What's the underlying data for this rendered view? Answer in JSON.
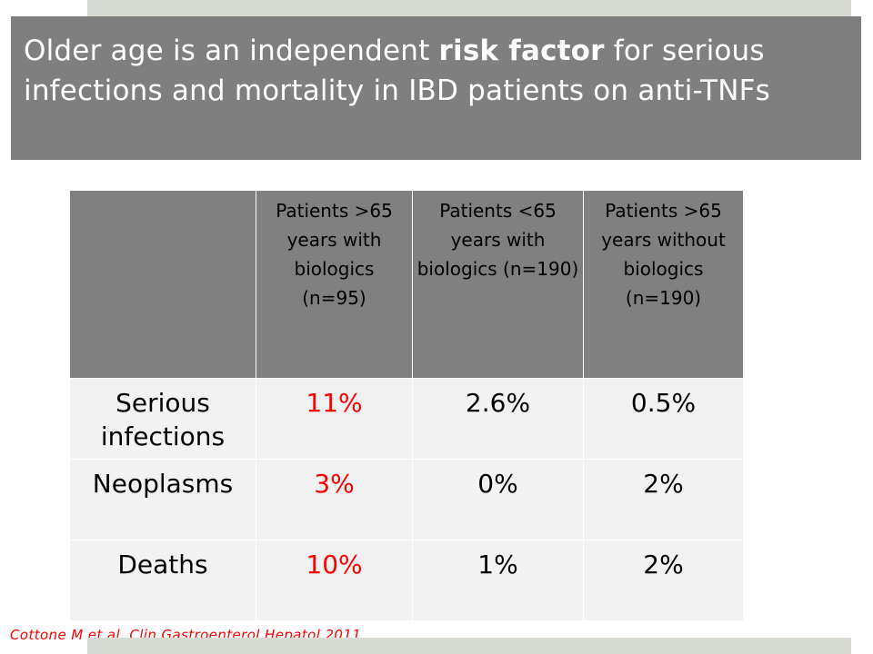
{
  "slide": {
    "title_part1": "Older age is an independent ",
    "title_bold": "risk factor",
    "title_part2": " for serious infections and mortality in IBD patients on anti-TNFs"
  },
  "table": {
    "headers": [
      "",
      "Patients >65 years with biologics (n=95)",
      "Patients <65 years with biologics (n=190)",
      "Patients >65 years without biologics (n=190)"
    ],
    "rows": [
      {
        "label": "Serious infections",
        "values": [
          "11%",
          "2.6%",
          "0.5%"
        ]
      },
      {
        "label": "Neoplasms",
        "values": [
          "3%",
          "0%",
          "2%"
        ]
      },
      {
        "label": "Deaths",
        "values": [
          "10%",
          "1%",
          "2%"
        ]
      }
    ],
    "highlight_color": "#ff0000",
    "header_bg": "#808080",
    "body_bg": "#f2f2f2"
  },
  "citation": "Cottone M et al. Clin Gastroenterol Hepatol 2011"
}
